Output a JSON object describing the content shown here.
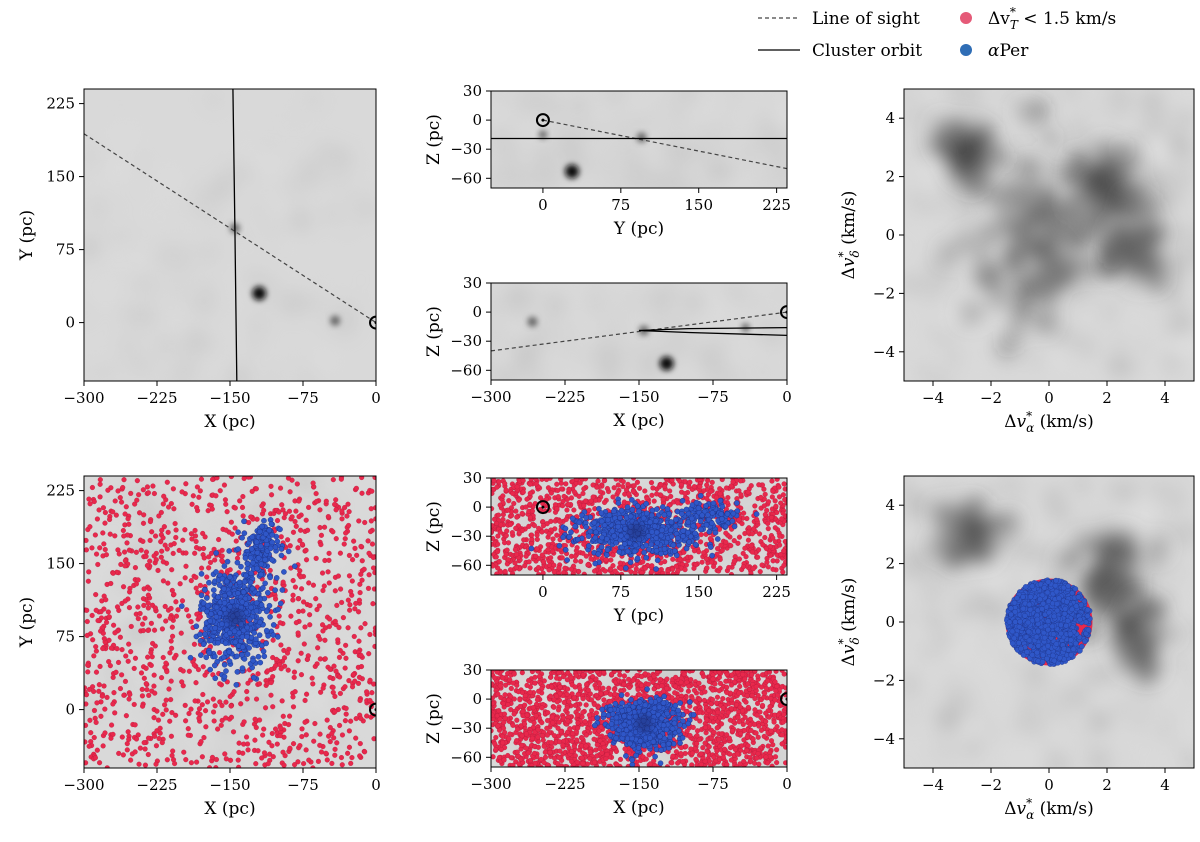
{
  "legend": {
    "line_of_sight": "Line of sight",
    "cluster_orbit": "Cluster orbit",
    "dvt_prefix": "Δv",
    "dvt_sub": "T",
    "dvt_sup": "*",
    "dvt_suffix": " < 1.5 km/s",
    "aper": "αPer",
    "aper_alpha": "α",
    "aper_rest": "Per",
    "color_red": "#e8284c",
    "color_blue": "#2f57c8"
  },
  "chart_data": [
    {
      "id": "xy_top",
      "type": "scatter",
      "xlabel": "X (pc)",
      "ylabel": "Y (pc)",
      "xlim": [
        -300,
        0
      ],
      "ylim": [
        -60,
        240
      ],
      "xticks": [
        -300,
        -225,
        -150,
        -75,
        0
      ],
      "yticks": [
        0,
        75,
        150,
        225
      ],
      "blobs": [
        {
          "x": -145,
          "y": 97,
          "s": 1
        },
        {
          "x": -120,
          "y": 30,
          "s": 2
        },
        {
          "x": -42,
          "y": 2,
          "s": 1
        }
      ],
      "line_of_sight": [
        [
          -300,
          194
        ],
        [
          0,
          0
        ]
      ],
      "orbit": [
        [
          -147,
          240
        ],
        [
          -145,
          100
        ],
        [
          -143,
          -60
        ]
      ],
      "sun": [
        0,
        0
      ]
    },
    {
      "id": "yz_top",
      "type": "scatter",
      "xlabel": "Y (pc)",
      "ylabel": "Z (pc)",
      "xlim": [
        -50,
        235
      ],
      "ylim": [
        -70,
        30
      ],
      "xticks": [
        0,
        75,
        150,
        225
      ],
      "yticks": [
        -60,
        -30,
        0,
        30
      ],
      "blobs": [
        {
          "x": 95,
          "y": -18,
          "s": 1
        },
        {
          "x": 28,
          "y": -53,
          "s": 2
        },
        {
          "x": 0,
          "y": -15,
          "s": 0.6
        }
      ],
      "line_of_sight": [
        [
          0,
          0
        ],
        [
          235,
          -50
        ]
      ],
      "orbit": [
        [
          -50,
          -19
        ],
        [
          235,
          -19
        ]
      ],
      "sun": [
        0,
        0
      ]
    },
    {
      "id": "xz_top",
      "type": "scatter",
      "xlabel": "X (pc)",
      "ylabel": "Z (pc)",
      "xlim": [
        -300,
        0
      ],
      "ylim": [
        -70,
        30
      ],
      "xticks": [
        -300,
        -225,
        -150,
        -75,
        0
      ],
      "yticks": [
        -60,
        -30,
        0,
        30
      ],
      "blobs": [
        {
          "x": -258,
          "y": -10,
          "s": 1
        },
        {
          "x": -145,
          "y": -19,
          "s": 1
        },
        {
          "x": -122,
          "y": -53,
          "s": 2
        },
        {
          "x": -42,
          "y": -16,
          "s": 0.6
        }
      ],
      "line_of_sight": [
        [
          -300,
          -40
        ],
        [
          0,
          0
        ]
      ],
      "orbit": [
        [
          -150,
          -19
        ],
        [
          -100,
          -17
        ],
        [
          0,
          -16
        ]
      ],
      "orbit2": [
        [
          -150,
          -19
        ],
        [
          -100,
          -21
        ],
        [
          0,
          -24
        ]
      ],
      "sun": [
        0,
        0
      ]
    },
    {
      "id": "pm_top",
      "type": "heatmap",
      "xlabel": "Δv*α (km/s)",
      "ylabel": "Δv*δ (km/s)",
      "xlim": [
        -5,
        5
      ],
      "ylim": [
        -5,
        5
      ],
      "xticks": [
        -4,
        -2,
        0,
        2,
        4
      ],
      "yticks": [
        -4,
        -2,
        0,
        2,
        4
      ],
      "blobs": [
        {
          "x": -0.3,
          "y": 0.0,
          "s": 3
        },
        {
          "x": 2.0,
          "y": 1.5,
          "s": 1.5
        },
        {
          "x": -2.8,
          "y": 2.8,
          "s": 1.2
        },
        {
          "x": 3.0,
          "y": -0.5,
          "s": 1.2
        }
      ]
    },
    {
      "id": "xy_bottom",
      "type": "scatter",
      "xlabel": "X (pc)",
      "ylabel": "Y (pc)",
      "xlim": [
        -300,
        0
      ],
      "ylim": [
        -60,
        240
      ],
      "xticks": [
        -300,
        -225,
        -150,
        -75,
        0
      ],
      "yticks": [
        0,
        75,
        150,
        225
      ],
      "red_count": 1200,
      "red_region": {
        "x": [
          -300,
          0
        ],
        "y": [
          -60,
          240
        ]
      },
      "blue_members": [
        {
          "cx": -145,
          "cy": 95,
          "sx": 17,
          "sy": 24,
          "n": 600
        },
        {
          "cx": -120,
          "cy": 160,
          "sx": 10,
          "sy": 14,
          "n": 150
        },
        {
          "cx": -112,
          "cy": 180,
          "sx": 6,
          "sy": 7,
          "n": 50
        }
      ],
      "sun": [
        0,
        0
      ]
    },
    {
      "id": "yz_bottom",
      "type": "scatter",
      "xlabel": "Y (pc)",
      "ylabel": "Z (pc)",
      "xlim": [
        -50,
        235
      ],
      "ylim": [
        -70,
        30
      ],
      "xticks": [
        0,
        75,
        150,
        225
      ],
      "yticks": [
        -60,
        -30,
        0,
        30
      ],
      "red_count": 1300,
      "red_region": {
        "x": [
          -50,
          235
        ],
        "y": [
          -70,
          30
        ]
      },
      "blue_members": [
        {
          "cx": 90,
          "cy": -25,
          "sx": 28,
          "sy": 12,
          "n": 600
        },
        {
          "cx": 160,
          "cy": -10,
          "sx": 14,
          "sy": 8,
          "n": 120
        }
      ],
      "sun": [
        0,
        0
      ]
    },
    {
      "id": "xz_bottom",
      "type": "scatter",
      "xlabel": "X (pc)",
      "ylabel": "Z (pc)",
      "xlim": [
        -300,
        0
      ],
      "ylim": [
        -70,
        30
      ],
      "xticks": [
        -300,
        -225,
        -150,
        -75,
        0
      ],
      "yticks": [
        -60,
        -30,
        0,
        30
      ],
      "red_count": 1900,
      "red_region": {
        "x": [
          -300,
          0
        ],
        "y": [
          -70,
          30
        ]
      },
      "blue_members": [
        {
          "cx": -145,
          "cy": -25,
          "sx": 17,
          "sy": 12,
          "n": 700
        }
      ],
      "sun": [
        0,
        0
      ]
    },
    {
      "id": "pm_bottom",
      "type": "heatmap",
      "xlabel": "Δv*α (km/s)",
      "ylabel": "Δv*δ (km/s)",
      "xlim": [
        -5,
        5
      ],
      "ylim": [
        -5,
        5
      ],
      "xticks": [
        -4,
        -2,
        0,
        2,
        4
      ],
      "yticks": [
        -4,
        -2,
        0,
        2,
        4
      ],
      "blobs": [
        {
          "x": 2.0,
          "y": 1.5,
          "s": 1.5
        },
        {
          "x": -2.8,
          "y": 2.8,
          "s": 1.2
        },
        {
          "x": 3.0,
          "y": -0.5,
          "s": 1.2
        }
      ],
      "selection_radius": 1.5,
      "selection_center": [
        0,
        0
      ]
    }
  ]
}
